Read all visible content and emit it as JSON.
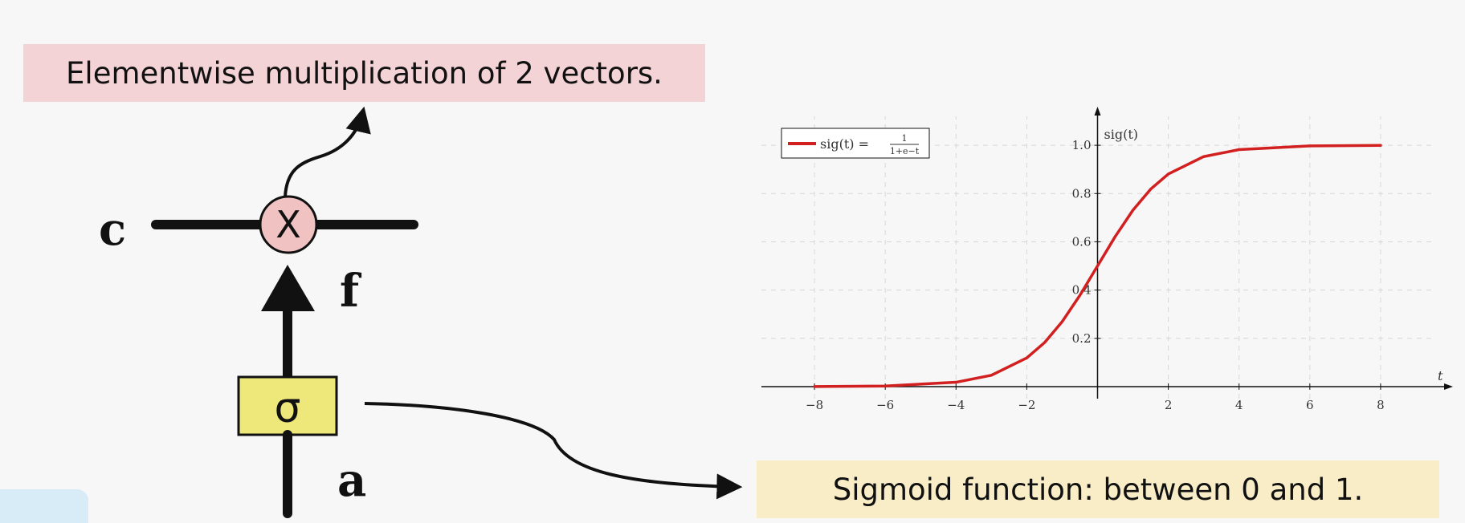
{
  "callouts": {
    "top": "Elementwise multiplication of 2 vectors.",
    "bottom": "Sigmoid function: between 0 and 1."
  },
  "diagram": {
    "labels": {
      "c": "c",
      "f": "f",
      "a": "a",
      "multiply": "X",
      "sigma": "σ"
    },
    "colors": {
      "multiply_fill": "#f1c2c2",
      "sigma_fill": "#eee87b",
      "line": "#111111"
    }
  },
  "chart_data": {
    "type": "line",
    "function_label": "sig(t) =",
    "legend_numerator": "1",
    "legend_denominator": "1+e^{-t}",
    "ylabel": "sig(t)",
    "xlabel": "t",
    "xlim": [
      -9.5,
      9.5
    ],
    "ylim": [
      -0.05,
      1.12
    ],
    "xticks": [
      -8,
      -6,
      -4,
      -2,
      2,
      4,
      6,
      8
    ],
    "xtick_labels": [
      "−8",
      "−6",
      "−4",
      "−2",
      "2",
      "4",
      "6",
      "8"
    ],
    "yticks": [
      0.2,
      0.4,
      0.6,
      0.8,
      1.0
    ],
    "ytick_labels": [
      "0.2",
      "0.4",
      "0.6",
      "0.8",
      "1.0"
    ],
    "series": [
      {
        "name": "sig(t) = 1/(1+e^{-t})",
        "x": [
          -8,
          -6,
          -4,
          -3,
          -2,
          -1.5,
          -1,
          -0.5,
          0,
          0.5,
          1,
          1.5,
          2,
          3,
          4,
          6,
          8
        ],
        "y": [
          0.0003,
          0.0025,
          0.018,
          0.047,
          0.119,
          0.182,
          0.269,
          0.378,
          0.5,
          0.622,
          0.731,
          0.818,
          0.881,
          0.953,
          0.982,
          0.9975,
          0.9997
        ]
      }
    ],
    "grid": true,
    "legend_position": "top-left",
    "line_color": "#d21f1f"
  }
}
